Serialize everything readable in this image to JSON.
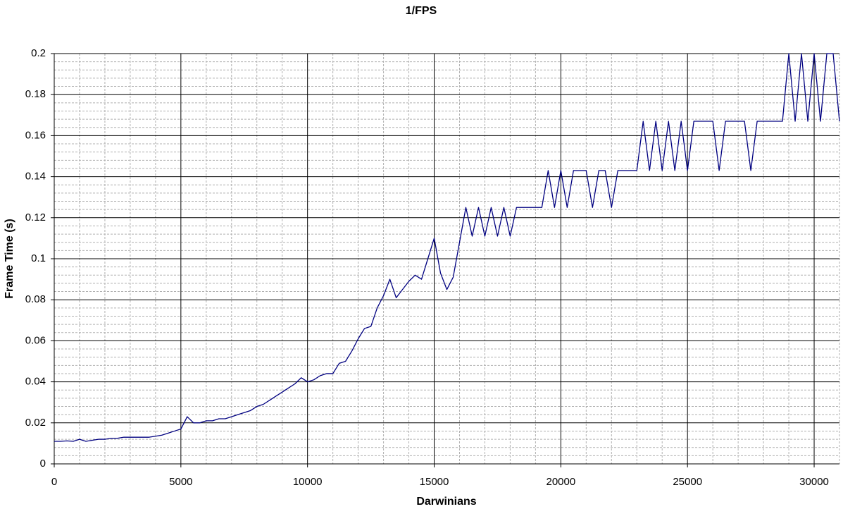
{
  "chart_data": {
    "type": "line",
    "title": "1/FPS",
    "x_label": "Darwinians",
    "y_label": "Frame Time (s)",
    "x": [
      0,
      250,
      500,
      750,
      1000,
      1250,
      1500,
      1750,
      2000,
      2250,
      2500,
      2750,
      3000,
      3250,
      3500,
      3750,
      4000,
      4250,
      4500,
      4750,
      5000,
      5250,
      5500,
      5750,
      6000,
      6250,
      6500,
      6750,
      7000,
      7250,
      7500,
      7750,
      8000,
      8250,
      8500,
      8750,
      9000,
      9250,
      9500,
      9750,
      10000,
      10250,
      10500,
      10750,
      11000,
      11250,
      11500,
      11750,
      12000,
      12250,
      12500,
      12750,
      13000,
      13250,
      13500,
      13750,
      14000,
      14250,
      14500,
      14750,
      15000,
      15250,
      15500,
      15750,
      16000,
      16250,
      16500,
      16750,
      17000,
      17250,
      17500,
      17750,
      18000,
      18250,
      18500,
      18750,
      19000,
      19250,
      19500,
      19750,
      20000,
      20250,
      20500,
      20750,
      21000,
      21250,
      21500,
      21750,
      22000,
      22250,
      22500,
      22750,
      23000,
      23250,
      23500,
      23750,
      24000,
      24250,
      24500,
      24750,
      25000,
      25250,
      25500,
      25750,
      26000,
      26250,
      26500,
      26750,
      27000,
      27250,
      27500,
      27750,
      28000,
      28250,
      28500,
      28750,
      29000,
      29250,
      29500,
      29750,
      30000,
      30250,
      30500,
      30750,
      31000
    ],
    "series": [
      {
        "name": "Frame Time",
        "color": "#000080",
        "values": [
          0.011,
          0.011,
          0.0112,
          0.011,
          0.012,
          0.011,
          0.0115,
          0.012,
          0.012,
          0.0125,
          0.0125,
          0.013,
          0.013,
          0.013,
          0.013,
          0.013,
          0.0135,
          0.014,
          0.015,
          0.016,
          0.017,
          0.023,
          0.02,
          0.02,
          0.021,
          0.021,
          0.022,
          0.022,
          0.023,
          0.024,
          0.025,
          0.026,
          0.028,
          0.029,
          0.031,
          0.033,
          0.035,
          0.037,
          0.039,
          0.042,
          0.04,
          0.041,
          0.043,
          0.044,
          0.044,
          0.049,
          0.05,
          0.055,
          0.061,
          0.066,
          0.067,
          0.076,
          0.082,
          0.09,
          0.081,
          0.085,
          0.089,
          0.092,
          0.09,
          0.1,
          0.11,
          0.093,
          0.085,
          0.091,
          0.108,
          0.125,
          0.111,
          0.125,
          0.111,
          0.125,
          0.111,
          0.125,
          0.111,
          0.125,
          0.125,
          0.125,
          0.125,
          0.125,
          0.143,
          0.125,
          0.143,
          0.125,
          0.143,
          0.143,
          0.143,
          0.125,
          0.143,
          0.143,
          0.125,
          0.143,
          0.143,
          0.143,
          0.143,
          0.167,
          0.143,
          0.167,
          0.143,
          0.167,
          0.143,
          0.167,
          0.143,
          0.167,
          0.167,
          0.167,
          0.167,
          0.143,
          0.167,
          0.167,
          0.167,
          0.167,
          0.143,
          0.167,
          0.167,
          0.167,
          0.167,
          0.167,
          0.2,
          0.167,
          0.2,
          0.167,
          0.2,
          0.167,
          0.2,
          0.2,
          0.167
        ]
      }
    ],
    "xlim": [
      0,
      31000
    ],
    "xticks": [
      0,
      5000,
      10000,
      15000,
      20000,
      25000,
      30000
    ],
    "ylim": [
      0,
      0.2
    ],
    "yticks": [
      0,
      0.02,
      0.04,
      0.06,
      0.08,
      0.1,
      0.12,
      0.14,
      0.16,
      0.18,
      0.2
    ],
    "grid": true,
    "minor_grid": true
  }
}
